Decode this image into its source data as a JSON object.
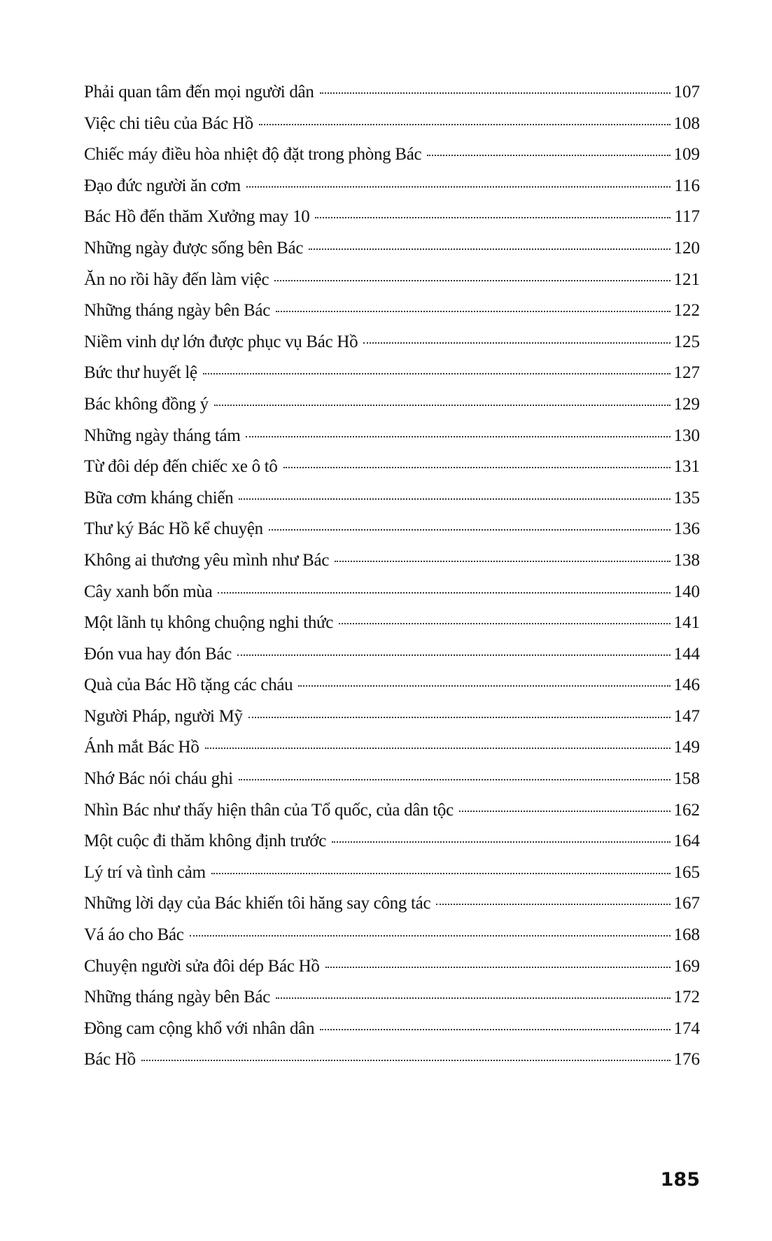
{
  "toc": {
    "entries": [
      {
        "title": "Phải quan tâm đến mọi người dân",
        "page": "107"
      },
      {
        "title": "Việc chi tiêu của Bác Hồ",
        "page": "108"
      },
      {
        "title": "Chiếc máy điều hòa nhiệt độ đặt trong phòng Bác",
        "page": "109"
      },
      {
        "title": "Đạo đức người ăn cơm",
        "page": "116"
      },
      {
        "title": "Bác Hồ đến thăm Xưởng may 10",
        "page": "117"
      },
      {
        "title": "Những ngày được sống bên Bác",
        "page": "120"
      },
      {
        "title": "Ăn no rồi hãy đến làm việc",
        "page": "121"
      },
      {
        "title": "Những tháng ngày bên Bác",
        "page": "122"
      },
      {
        "title": "Niềm vinh dự lớn được phục vụ Bác Hồ",
        "page": "125"
      },
      {
        "title": "Bức thư huyết lệ",
        "page": "127"
      },
      {
        "title": "Bác không đồng ý",
        "page": "129"
      },
      {
        "title": "Những ngày tháng tám",
        "page": "130"
      },
      {
        "title": "Từ đôi dép đến chiếc xe ô tô",
        "page": "131"
      },
      {
        "title": "Bữa cơm kháng chiến",
        "page": "135"
      },
      {
        "title": "Thư ký Bác Hồ kể chuyện",
        "page": "136"
      },
      {
        "title": "Không ai thương yêu mình như Bác",
        "page": "138"
      },
      {
        "title": "Cây xanh bốn mùa",
        "page": "140"
      },
      {
        "title": "Một lãnh tụ không chuộng nghi thức",
        "page": "141"
      },
      {
        "title": "Đón vua hay đón Bác",
        "page": "144"
      },
      {
        "title": "Quà của Bác Hồ tặng các cháu",
        "page": "146"
      },
      {
        "title": "Người Pháp, người Mỹ",
        "page": "147"
      },
      {
        "title": "Ánh mắt Bác Hồ",
        "page": "149"
      },
      {
        "title": "Nhớ Bác nói cháu ghi",
        "page": "158"
      },
      {
        "title": "Nhìn Bác như thấy hiện thân của Tổ quốc, của dân tộc",
        "page": "162"
      },
      {
        "title": "Một cuộc đi thăm không định trước",
        "page": "164"
      },
      {
        "title": "Lý trí và tình cảm",
        "page": "165"
      },
      {
        "title": "Những lời dạy của Bác khiến tôi hăng say công tác",
        "page": "167"
      },
      {
        "title": "Vá áo cho Bác",
        "page": "168"
      },
      {
        "title": "Chuyện người sửa đôi dép Bác Hồ",
        "page": "169"
      },
      {
        "title": "Những tháng ngày bên Bác",
        "page": "172"
      },
      {
        "title": "Đồng cam cộng khổ với nhân dân",
        "page": "174"
      },
      {
        "title": "Bác Hồ",
        "page": "176"
      }
    ]
  },
  "page_number": "185"
}
